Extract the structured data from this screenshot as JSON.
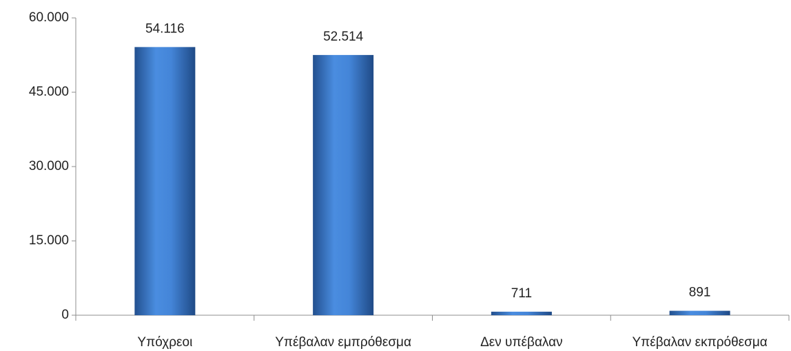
{
  "chart_data": {
    "type": "bar",
    "categories": [
      "Υπόχρεοι",
      "Υπέβαλαν εμπρόθεσμα",
      "Δεν υπέβαλαν",
      "Υπέβαλαν εκπρόθεσμα"
    ],
    "values": [
      54116,
      52514,
      711,
      891
    ],
    "value_labels": [
      "54.116",
      "52.514",
      "711",
      "891"
    ],
    "color": "#3f7fd2",
    "ylim": [
      0,
      60000
    ],
    "yticks": [
      0,
      {
        "value": 15000,
        "label": "15.000"
      },
      {
        "value": 30000,
        "label": "30.000"
      },
      {
        "value": 45000,
        "label": "45.000"
      },
      {
        "value": 60000,
        "label": "60.000"
      }
    ],
    "grid": false
  }
}
